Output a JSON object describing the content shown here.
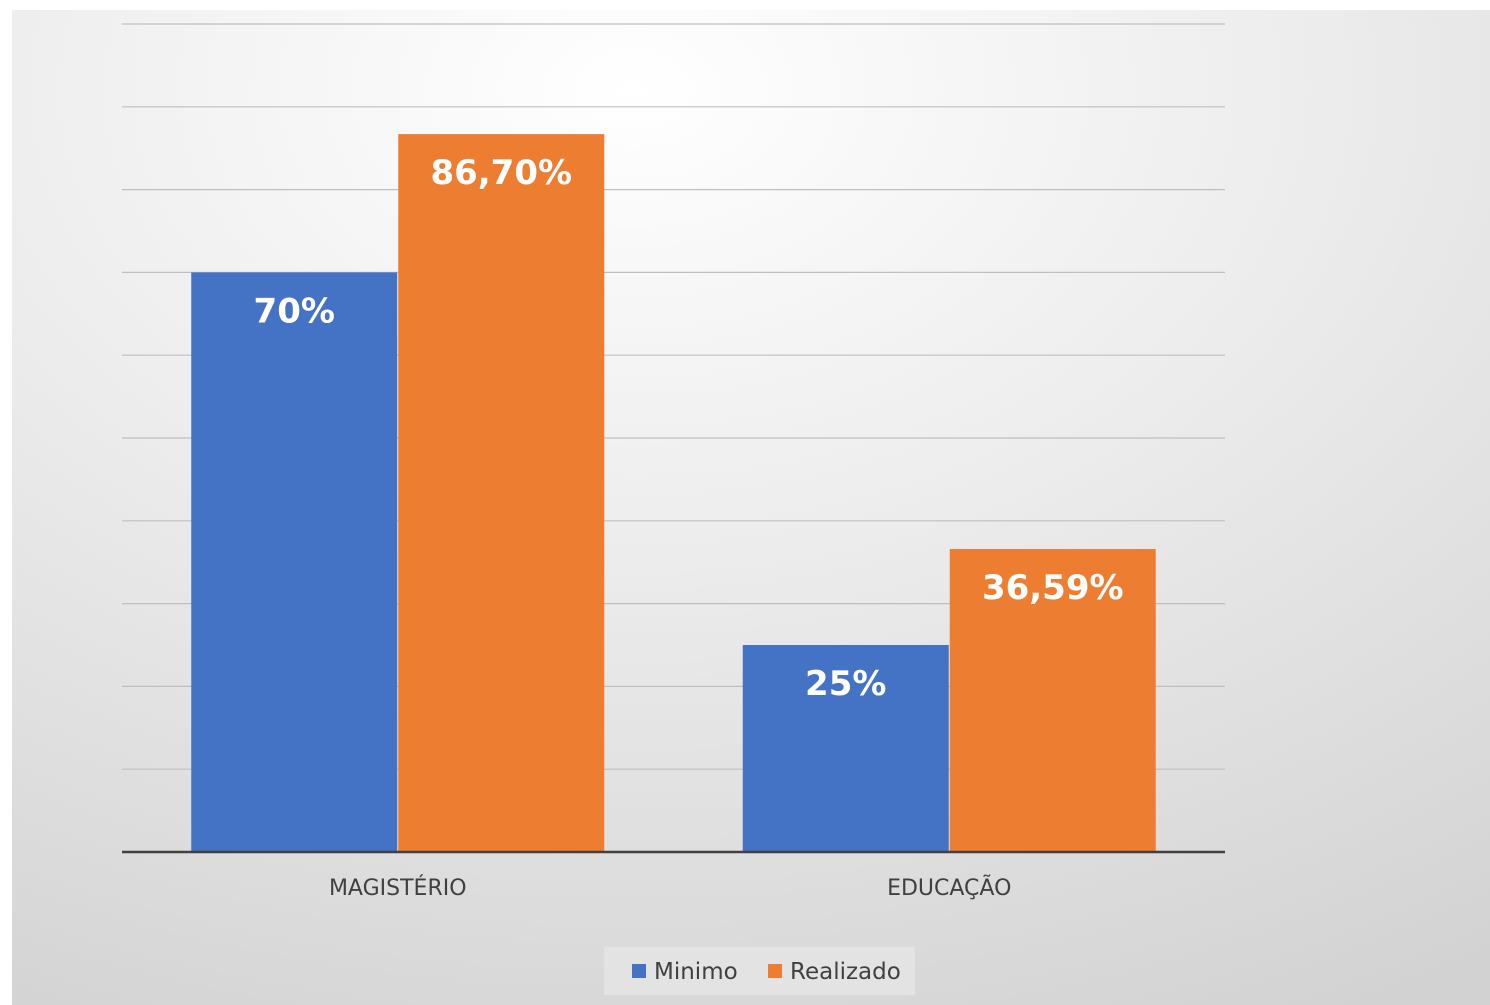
{
  "chart_data": {
    "type": "bar",
    "categories": [
      "MAGISTÉRIO",
      "EDUCAÇÃO"
    ],
    "series": [
      {
        "name": "Minimo",
        "values": [
          70,
          25
        ],
        "labels": [
          "70%",
          "25%"
        ],
        "color": "#4472C4"
      },
      {
        "name": "Realizado",
        "values": [
          86.7,
          36.59
        ],
        "labels": [
          "86,70%",
          "36,59%"
        ],
        "color": "#ED7D31"
      }
    ],
    "title": "",
    "xlabel": "",
    "ylabel": "",
    "ylim": [
      0,
      100
    ],
    "grid": true,
    "legend_position": "bottom",
    "y_tick_labels_shown": false
  },
  "colors": {
    "background_light": "#ffffff",
    "background_dark": "#d6d6d6",
    "gridline": "#bfbfbf",
    "axis": "#404040",
    "text": "#404040",
    "data_label": "#ffffff"
  }
}
